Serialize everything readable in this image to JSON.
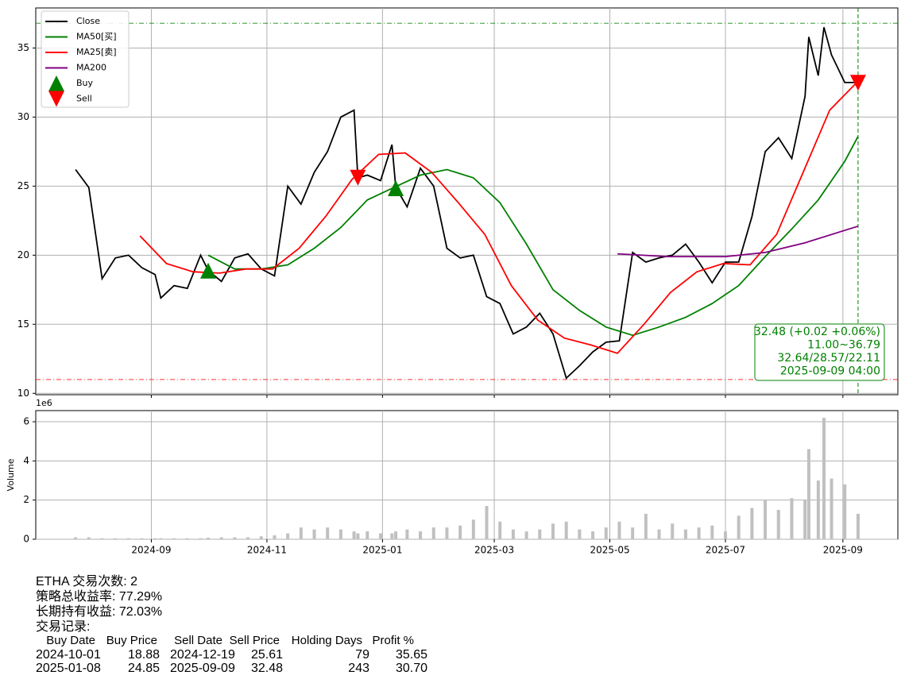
{
  "chart_data": [
    {
      "type": "line",
      "xlim": [
        "2024-07-02",
        "2025-09-30"
      ],
      "ylim": [
        9.9,
        37.9
      ],
      "yticks": [
        10,
        15,
        20,
        25,
        30,
        35
      ],
      "grid": true,
      "legend": "upper left",
      "series": [
        {
          "name": "Close",
          "color": "#000000",
          "x": [
            "2024-07-23",
            "2024-07-30",
            "2024-08-06",
            "2024-08-13",
            "2024-08-20",
            "2024-08-27",
            "2024-09-03",
            "2024-09-06",
            "2024-09-13",
            "2024-09-20",
            "2024-09-27",
            "2024-10-01",
            "2024-10-08",
            "2024-10-15",
            "2024-10-22",
            "2024-10-29",
            "2024-11-05",
            "2024-11-12",
            "2024-11-19",
            "2024-11-26",
            "2024-12-03",
            "2024-12-10",
            "2024-12-17",
            "2024-12-19",
            "2024-12-24",
            "2024-12-31",
            "2025-01-06",
            "2025-01-08",
            "2025-01-14",
            "2025-01-21",
            "2025-01-28",
            "2025-02-04",
            "2025-02-11",
            "2025-02-18",
            "2025-02-25",
            "2025-03-04",
            "2025-03-11",
            "2025-03-18",
            "2025-03-25",
            "2025-04-01",
            "2025-04-08",
            "2025-04-15",
            "2025-04-22",
            "2025-04-29",
            "2025-05-06",
            "2025-05-13",
            "2025-05-20",
            "2025-05-27",
            "2025-06-03",
            "2025-06-10",
            "2025-06-17",
            "2025-06-24",
            "2025-07-01",
            "2025-07-08",
            "2025-07-15",
            "2025-07-22",
            "2025-07-29",
            "2025-08-05",
            "2025-08-12",
            "2025-08-14",
            "2025-08-19",
            "2025-08-22",
            "2025-08-26",
            "2025-09-02",
            "2025-09-09"
          ],
          "values": [
            26.2,
            24.9,
            18.3,
            19.8,
            20.0,
            19.1,
            18.6,
            16.9,
            17.8,
            17.6,
            20.0,
            18.9,
            18.1,
            19.8,
            20.1,
            19.0,
            18.5,
            25.0,
            23.7,
            26.0,
            27.5,
            30.0,
            30.5,
            25.6,
            25.8,
            25.4,
            28.0,
            24.9,
            23.5,
            26.3,
            25.0,
            20.5,
            19.8,
            20.0,
            17.0,
            16.5,
            14.3,
            14.8,
            15.8,
            14.3,
            11.1,
            12.0,
            13.0,
            13.7,
            13.8,
            20.2,
            19.5,
            19.8,
            20.0,
            20.8,
            19.5,
            18.0,
            19.5,
            19.5,
            22.8,
            27.5,
            28.5,
            27.0,
            31.5,
            35.8,
            33.0,
            36.5,
            34.5,
            32.5,
            32.5
          ]
        },
        {
          "name": "MA50[买]",
          "color": "#008000",
          "x": [
            "2024-10-01",
            "2024-10-15",
            "2024-10-29",
            "2024-11-12",
            "2024-11-26",
            "2024-12-10",
            "2024-12-24",
            "2025-01-07",
            "2025-01-21",
            "2025-02-04",
            "2025-02-18",
            "2025-03-04",
            "2025-03-18",
            "2025-04-01",
            "2025-04-15",
            "2025-04-29",
            "2025-05-13",
            "2025-05-27",
            "2025-06-10",
            "2025-06-24",
            "2025-07-08",
            "2025-07-22",
            "2025-08-05",
            "2025-08-19",
            "2025-09-02",
            "2025-09-09"
          ],
          "values": [
            20.0,
            19.0,
            19.0,
            19.3,
            20.5,
            22.0,
            24.0,
            24.9,
            25.8,
            26.2,
            25.6,
            23.8,
            20.8,
            17.5,
            16.0,
            14.8,
            14.2,
            14.8,
            15.5,
            16.5,
            17.8,
            19.9,
            21.9,
            24.0,
            26.8,
            28.6
          ]
        },
        {
          "name": "MA25[卖]",
          "color": "#ff0000",
          "x": [
            "2024-08-26",
            "2024-09-09",
            "2024-09-23",
            "2024-10-07",
            "2024-10-21",
            "2024-11-04",
            "2024-11-18",
            "2024-12-02",
            "2024-12-16",
            "2024-12-30",
            "2025-01-13",
            "2025-01-27",
            "2025-02-10",
            "2025-02-24",
            "2025-03-10",
            "2025-03-24",
            "2025-04-07",
            "2025-04-21",
            "2025-05-05",
            "2025-05-19",
            "2025-06-02",
            "2025-06-16",
            "2025-06-30",
            "2025-07-14",
            "2025-07-28",
            "2025-08-11",
            "2025-08-25",
            "2025-09-09"
          ],
          "values": [
            21.4,
            19.4,
            18.8,
            18.7,
            19.0,
            19.0,
            20.5,
            22.8,
            25.5,
            27.3,
            27.4,
            26.0,
            23.8,
            21.5,
            17.8,
            15.3,
            14.0,
            13.5,
            12.9,
            15.0,
            17.3,
            18.8,
            19.4,
            19.3,
            21.5,
            26.0,
            30.5,
            32.6
          ]
        },
        {
          "name": "MA200",
          "color": "#800080",
          "x": [
            "2025-05-05",
            "2025-06-01",
            "2025-07-01",
            "2025-07-22",
            "2025-08-12",
            "2025-09-09"
          ],
          "values": [
            20.1,
            19.9,
            19.9,
            20.2,
            20.9,
            22.1
          ]
        }
      ],
      "markers": [
        {
          "name": "Buy",
          "color": "#008000",
          "shape": "up",
          "x": [
            "2024-10-01",
            "2025-01-08"
          ],
          "values": [
            18.88,
            24.85
          ]
        },
        {
          "name": "Sell",
          "color": "#ff0000",
          "shape": "down",
          "x": [
            "2024-12-19",
            "2025-09-09"
          ],
          "values": [
            25.61,
            32.48
          ]
        }
      ],
      "hlines": [
        {
          "value": 36.79,
          "color": "#008000"
        },
        {
          "value": 11.0,
          "color": "#ff0000"
        }
      ],
      "vline": {
        "x": "2025-09-09",
        "color": "#008000"
      },
      "annotation": [
        "32.48 (+0.02 +0.06%)",
        "11.00~36.79",
        "32.64/28.57/22.11",
        "2025-09-09 04:00"
      ]
    },
    {
      "type": "bar",
      "ylabel": "Volume",
      "offset_label": "1e6",
      "color": "#c0c0c0",
      "xlim": [
        "2024-07-02",
        "2025-09-30"
      ],
      "ylim": [
        0,
        6.57
      ],
      "yticks": [
        0,
        2,
        4,
        6
      ],
      "grid": true,
      "xticks": [
        {
          "value": "2024-09-01",
          "label": "2024-09"
        },
        {
          "value": "2024-11-01",
          "label": "2024-11"
        },
        {
          "value": "2025-01-01",
          "label": "2025-01"
        },
        {
          "value": "2025-03-01",
          "label": "2025-03"
        },
        {
          "value": "2025-05-01",
          "label": "2025-05"
        },
        {
          "value": "2025-07-01",
          "label": "2025-07"
        },
        {
          "value": "2025-09-01",
          "label": "2025-09"
        }
      ],
      "x": [
        "2024-07-23",
        "2024-07-30",
        "2024-08-06",
        "2024-08-13",
        "2024-08-20",
        "2024-08-27",
        "2024-09-03",
        "2024-09-06",
        "2024-09-13",
        "2024-09-20",
        "2024-09-27",
        "2024-10-01",
        "2024-10-08",
        "2024-10-15",
        "2024-10-22",
        "2024-10-29",
        "2024-11-05",
        "2024-11-12",
        "2024-11-19",
        "2024-11-26",
        "2024-12-03",
        "2024-12-10",
        "2024-12-17",
        "2024-12-19",
        "2024-12-24",
        "2024-12-31",
        "2025-01-06",
        "2025-01-08",
        "2025-01-14",
        "2025-01-21",
        "2025-01-28",
        "2025-02-04",
        "2025-02-11",
        "2025-02-18",
        "2025-02-25",
        "2025-03-04",
        "2025-03-11",
        "2025-03-18",
        "2025-03-25",
        "2025-04-01",
        "2025-04-08",
        "2025-04-15",
        "2025-04-22",
        "2025-04-29",
        "2025-05-06",
        "2025-05-13",
        "2025-05-20",
        "2025-05-27",
        "2025-06-03",
        "2025-06-10",
        "2025-06-17",
        "2025-06-24",
        "2025-07-01",
        "2025-07-08",
        "2025-07-15",
        "2025-07-22",
        "2025-07-29",
        "2025-08-05",
        "2025-08-12",
        "2025-08-14",
        "2025-08-19",
        "2025-08-22",
        "2025-08-26",
        "2025-09-02",
        "2025-09-09"
      ],
      "values": [
        0.1,
        0.1,
        0.05,
        0.05,
        0.05,
        0.05,
        0.05,
        0.05,
        0.05,
        0.05,
        0.05,
        0.08,
        0.1,
        0.1,
        0.1,
        0.15,
        0.2,
        0.3,
        0.6,
        0.5,
        0.6,
        0.5,
        0.4,
        0.3,
        0.4,
        0.3,
        0.3,
        0.4,
        0.5,
        0.4,
        0.6,
        0.6,
        0.7,
        1.0,
        1.7,
        0.9,
        0.5,
        0.4,
        0.5,
        0.8,
        0.9,
        0.5,
        0.4,
        0.6,
        0.9,
        0.6,
        1.3,
        0.5,
        0.8,
        0.5,
        0.6,
        0.7,
        0.4,
        1.2,
        1.6,
        2.0,
        1.5,
        2.1,
        2.0,
        4.6,
        3.0,
        6.2,
        3.1,
        2.8,
        1.3
      ]
    }
  ],
  "report": {
    "summary": [
      "ETHA 交易次数: 2",
      "策略总收益率: 77.29%",
      "长期持有收益: 72.03%",
      "交易记录:"
    ],
    "columns": [
      "Buy Date",
      "Buy Price",
      "Sell Date",
      "Sell Price",
      "Holding Days",
      "Profit %"
    ],
    "rows": [
      [
        "2024-10-01",
        "18.88",
        "2024-12-19",
        "25.61",
        "79",
        "35.65"
      ],
      [
        "2025-01-08",
        "24.85",
        "2025-09-09",
        "32.48",
        "243",
        "30.70"
      ]
    ]
  }
}
